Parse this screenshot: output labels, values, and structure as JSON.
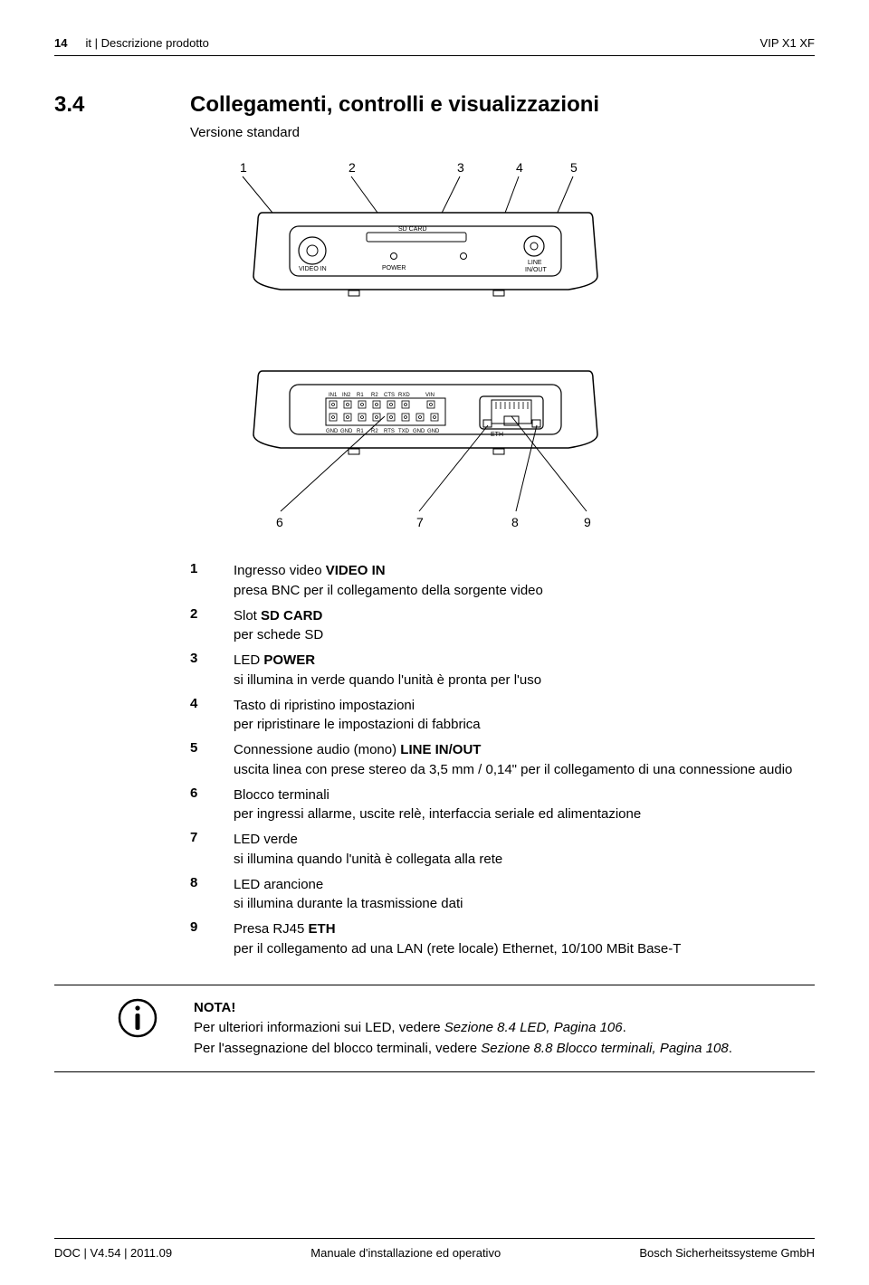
{
  "header": {
    "page_num": "14",
    "breadcrumb": "it | Descrizione prodotto",
    "product": "VIP X1 XF"
  },
  "section": {
    "number": "3.4",
    "title": "Collegamenti, controlli e visualizzazioni",
    "subtitle": "Versione standard"
  },
  "diagram_top": {
    "callouts": [
      "1",
      "2",
      "3",
      "4",
      "5"
    ],
    "signals": {
      "video_in": "VIDEO IN",
      "sd_card": "SD CARD",
      "power": "POWER",
      "line": "LINE",
      "in_out": "IN/OUT"
    }
  },
  "diagram_bottom": {
    "callouts": [
      "6",
      "7",
      "8",
      "9"
    ],
    "signals_top": [
      "IN1",
      "IN2",
      "R1",
      "R2",
      "CTS",
      "RXD",
      "VIN"
    ],
    "signals_bot": [
      "GND",
      "GND",
      "R1",
      "R2",
      "RTS",
      "TXD",
      "GND",
      "GND",
      "ETH"
    ]
  },
  "items": [
    {
      "n": "1",
      "title": "Ingresso video <b>VIDEO IN</b>",
      "desc": "presa BNC per il collegamento della sorgente video"
    },
    {
      "n": "2",
      "title": "Slot <b>SD CARD</b>",
      "desc": "per schede SD"
    },
    {
      "n": "3",
      "title": "LED <b>POWER</b>",
      "desc": "si illumina in verde quando l'unità è pronta per l'uso"
    },
    {
      "n": "4",
      "title": "Tasto di ripristino impostazioni",
      "desc": "per ripristinare le impostazioni di fabbrica"
    },
    {
      "n": "5",
      "title": "Connessione audio (mono) <b>LINE IN/OUT</b>",
      "desc": "uscita linea con prese stereo da 3,5 mm / 0,14\" per il collegamento di una connessione audio"
    },
    {
      "n": "6",
      "title": "Blocco terminali",
      "desc": "per ingressi allarme, uscite relè, interfaccia seriale ed alimentazione"
    },
    {
      "n": "7",
      "title": "LED verde",
      "desc": "si illumina quando l'unità è collegata alla rete"
    },
    {
      "n": "8",
      "title": "LED arancione",
      "desc": "si illumina durante la trasmissione dati"
    },
    {
      "n": "9",
      "title": "Presa RJ45 <b>ETH</b>",
      "desc": "per il collegamento ad una LAN (rete locale) Ethernet, 10/100 MBit Base-T"
    }
  ],
  "note": {
    "heading": "NOTA!",
    "line1_a": "Per ulteriori informazioni sui LED, vedere ",
    "line1_i": "Sezione 8.4 LED, Pagina 106",
    "line1_b": ".",
    "line2_a": "Per l'assegnazione del blocco terminali, vedere ",
    "line2_i": "Sezione 8.8 Blocco terminali, Pagina 108",
    "line2_b": "."
  },
  "footer": {
    "left": "DOC | V4.54 | 2011.09",
    "center": "Manuale d'installazione ed operativo",
    "right": "Bosch Sicherheitssysteme GmbH"
  },
  "style": {
    "line_color": "#000000",
    "stroke_width": 1.2,
    "font_family": "Arial",
    "callout_fontsize": 14,
    "signal_fontsize": 7
  }
}
